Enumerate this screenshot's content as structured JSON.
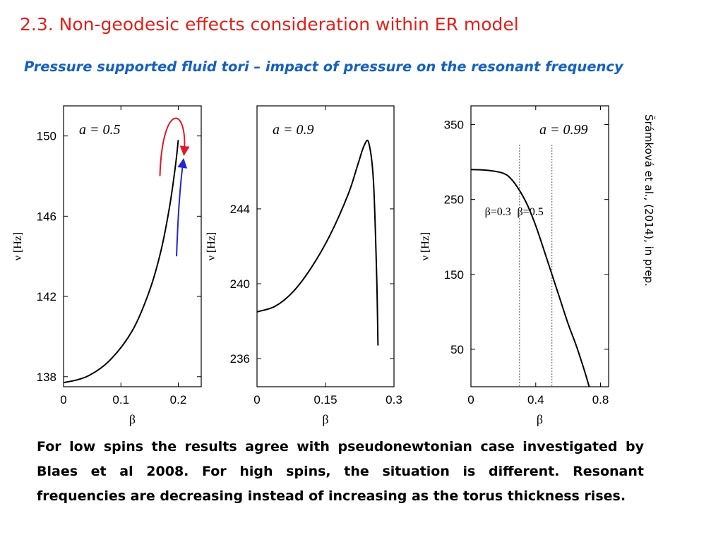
{
  "slide": {
    "title": "2.3. Non-geodesic effects consideration within ER model",
    "subtitle": "Pressure supported fluid tori – impact of pressure on the resonant frequency",
    "citation": "Šrámková et al., (2014), in prep.",
    "body": "For low spins the results agree with pseudonewtonian case investigated by Blaes et al 2008. For high spins, the situation is different. Resonant frequencies are decreasing instead of increasing as the  torus thickness rises."
  },
  "colors": {
    "title": "#e0201b",
    "subtitle": "#1560bd",
    "curve": "#000000",
    "red_arrow": "#e3162a",
    "blue_arrow": "#2424d6"
  },
  "chart_data": [
    {
      "type": "line",
      "annotation": "a = 0.5",
      "xlabel": "β",
      "ylabel": "ν [Hz]",
      "xlim": [
        0,
        0.24
      ],
      "ylim": [
        137.5,
        151.5
      ],
      "xticks": [
        "0",
        "0.1",
        "0.2"
      ],
      "xtick_values": [
        0,
        0.1,
        0.2
      ],
      "yticks": [
        "138",
        "142",
        "146",
        "150"
      ],
      "ytick_values": [
        138,
        142,
        146,
        150
      ],
      "series": [
        {
          "x": [
            0,
            0.04,
            0.08,
            0.12,
            0.15,
            0.17,
            0.185,
            0.195,
            0.2
          ],
          "y": [
            137.7,
            138.0,
            138.8,
            140.3,
            142.3,
            144.3,
            146.5,
            148.5,
            149.8
          ]
        }
      ],
      "arrows": [
        {
          "color": "red",
          "direction": "up then down"
        },
        {
          "color": "blue",
          "direction": "up"
        }
      ]
    },
    {
      "type": "line",
      "annotation": "a = 0.9",
      "xlabel": "β",
      "ylabel": "ν [Hz]",
      "xlim": [
        0,
        0.3
      ],
      "ylim": [
        234.5,
        249.5
      ],
      "xticks": [
        "0",
        "0.15",
        "0.3"
      ],
      "xtick_values": [
        0,
        0.15,
        0.3
      ],
      "yticks": [
        "236",
        "240",
        "244"
      ],
      "ytick_values": [
        236,
        240,
        244
      ],
      "series": [
        {
          "x": [
            0,
            0.04,
            0.08,
            0.12,
            0.16,
            0.2,
            0.22,
            0.235,
            0.245,
            0.255,
            0.262,
            0.265
          ],
          "y": [
            238.5,
            238.8,
            239.6,
            240.9,
            242.6,
            244.8,
            246.3,
            247.4,
            247.5,
            245.5,
            240.5,
            236.7
          ]
        }
      ]
    },
    {
      "type": "line",
      "annotation": "a = 0.99",
      "xlabel": "β",
      "ylabel": "ν [Hz]",
      "xlim": [
        0,
        0.85
      ],
      "ylim": [
        0,
        375
      ],
      "xticks": [
        "0",
        "0.4",
        "0.8"
      ],
      "xtick_values": [
        0,
        0.4,
        0.8
      ],
      "yticks": [
        "50",
        "150",
        "250",
        "350"
      ],
      "ytick_values": [
        50,
        150,
        250,
        350
      ],
      "series": [
        {
          "x": [
            0,
            0.1,
            0.2,
            0.25,
            0.3,
            0.35,
            0.4,
            0.45,
            0.5,
            0.55,
            0.6,
            0.65,
            0.7,
            0.73
          ],
          "y": [
            290,
            289,
            285,
            277,
            262,
            242,
            215,
            183,
            150,
            117,
            84,
            55,
            22,
            0
          ]
        }
      ],
      "vlines": [
        {
          "x": 0.3,
          "label": "β=0.3"
        },
        {
          "x": 0.5,
          "label": "β=0.5"
        }
      ]
    }
  ]
}
